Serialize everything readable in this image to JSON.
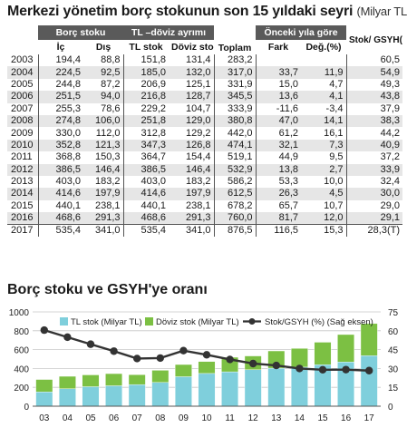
{
  "table": {
    "title": "Merkezi yönetim borç stokunun son 15 yıldaki seyri",
    "unit": "(Milyar TL)",
    "group_headers": {
      "borc_stoku": "Borç stoku",
      "tl_doviz": "TL –döviz ayrımı",
      "toplam": "Toplam",
      "onceki_yil": "Önceki yıla göre",
      "stok_gsyh": "Stok/ GSYH(%)"
    },
    "sub_headers": {
      "ic": "İç",
      "dis": "Dış",
      "tl_stok": "TL stok",
      "doviz_stok": "Döviz stok",
      "fark": "Fark",
      "deg": "Değ.(%)"
    },
    "rows": [
      [
        "2003",
        "194,4",
        "88,8",
        "151,8",
        "131,4",
        "283,2",
        "",
        "",
        "60,5"
      ],
      [
        "2004",
        "224,5",
        "92,5",
        "185,0",
        "132,0",
        "317,0",
        "33,7",
        "11,9",
        "54,9"
      ],
      [
        "2005",
        "244,8",
        "87,2",
        "206,9",
        "125,1",
        "331,9",
        "15,0",
        "4,7",
        "49,3"
      ],
      [
        "2006",
        "251,5",
        "94,0",
        "216,8",
        "128,7",
        "345,5",
        "13,6",
        "4,1",
        "43,8"
      ],
      [
        "2007",
        "255,3",
        "78,6",
        "229,2",
        "104,7",
        "333,9",
        "-11,6",
        "-3,4",
        "37,9"
      ],
      [
        "2008",
        "274,8",
        "106,0",
        "251,8",
        "129,0",
        "380,8",
        "47,0",
        "14,1",
        "38,3"
      ],
      [
        "2009",
        "330,0",
        "112,0",
        "312,8",
        "129,2",
        "442,0",
        "61,2",
        "16,1",
        "44,2"
      ],
      [
        "2010",
        "352,8",
        "121,3",
        "347,3",
        "126,8",
        "474,1",
        "32,1",
        "7,3",
        "40,9"
      ],
      [
        "2011",
        "368,8",
        "150,3",
        "364,7",
        "154,4",
        "519,1",
        "44,9",
        "9,5",
        "37,2"
      ],
      [
        "2012",
        "386,5",
        "146,4",
        "386,5",
        "146,4",
        "532,9",
        "13,8",
        "2,7",
        "33,9"
      ],
      [
        "2013",
        "403,0",
        "183,2",
        "403,0",
        "183,2",
        "586,2",
        "53,3",
        "10,0",
        "32,4"
      ],
      [
        "2014",
        "414,6",
        "197,9",
        "414,6",
        "197,9",
        "612,5",
        "26,3",
        "4,5",
        "30,0"
      ],
      [
        "2015",
        "440,1",
        "238,1",
        "440,1",
        "238,1",
        "678,2",
        "65,7",
        "10,7",
        "29,0"
      ],
      [
        "2016",
        "468,6",
        "291,3",
        "468,6",
        "291,3",
        "760,0",
        "81,7",
        "12,0",
        "29,1"
      ],
      [
        "2017",
        "535,4",
        "341,0",
        "535,4",
        "341,0",
        "876,5",
        "116,5",
        "15,3",
        "28,3(T)"
      ]
    ]
  },
  "chart_title": "Borç stoku ve GSYH'ye oranı",
  "colors": {
    "tl": "#7fcfdc",
    "doviz": "#7cc043",
    "line": "#333333",
    "header_dark": "#5a5a5a",
    "header_mid": "#8c8c8c",
    "row_alt": "#e6e6e6"
  },
  "chart_data": {
    "type": "bar",
    "stacked": true,
    "categories": [
      "03",
      "04",
      "05",
      "06",
      "07",
      "08",
      "09",
      "10",
      "11",
      "12",
      "13",
      "14",
      "15",
      "16",
      "17"
    ],
    "series": [
      {
        "name": "TL stok (Milyar TL)",
        "values": [
          151.8,
          185.0,
          206.9,
          216.8,
          229.2,
          251.8,
          312.8,
          347.3,
          364.7,
          386.5,
          403.0,
          414.6,
          440.1,
          468.6,
          535.4
        ]
      },
      {
        "name": "Döviz stok (Milyar TL)",
        "values": [
          131.4,
          132.0,
          125.1,
          128.7,
          104.7,
          129.0,
          129.2,
          126.8,
          154.4,
          146.4,
          183.2,
          197.9,
          238.1,
          291.3,
          341.0
        ]
      }
    ],
    "line_series": {
      "name": "Stok/GSYH (%) (Sağ eksen)",
      "values": [
        60.5,
        54.9,
        49.3,
        43.8,
        37.9,
        38.3,
        44.2,
        40.9,
        37.2,
        33.9,
        32.4,
        30.0,
        29.0,
        29.1,
        28.3
      ]
    },
    "ylim": [
      0,
      1000
    ],
    "yticks": [
      0,
      200,
      400,
      600,
      800,
      1000
    ],
    "y2lim": [
      0,
      75
    ],
    "y2ticks": [
      0,
      15,
      30,
      45,
      60,
      75
    ],
    "grid": true,
    "legend": "top"
  }
}
